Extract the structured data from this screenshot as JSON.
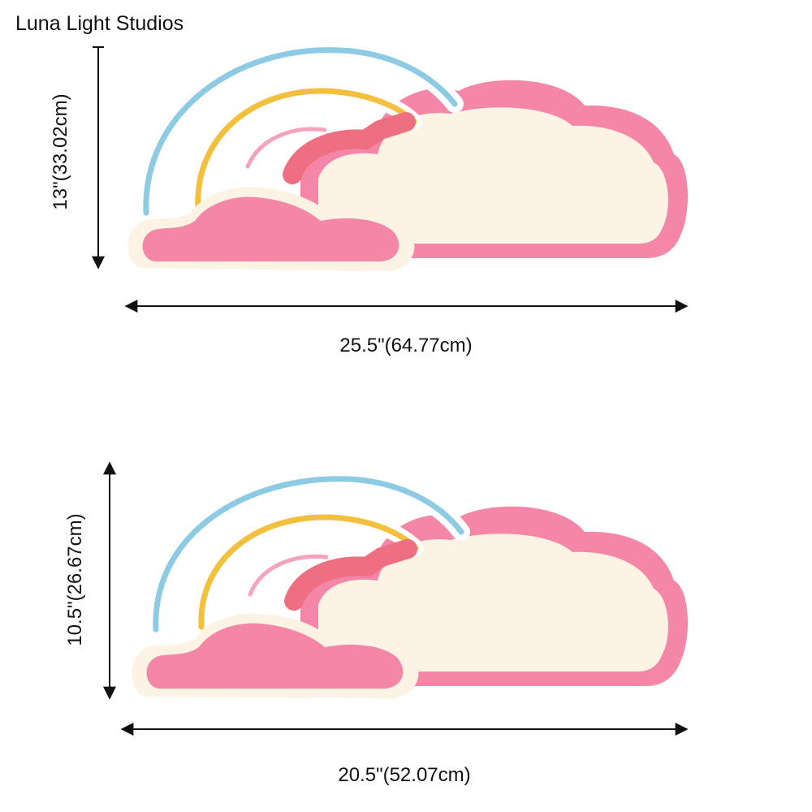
{
  "brand": "Luna Light Studios",
  "products": [
    {
      "height_label": "13\"(33.02cm)",
      "width_label": "25.5\"(64.77cm)"
    },
    {
      "height_label": "10.5\"(26.67cm)",
      "width_label": "20.5\"(52.07cm)"
    }
  ],
  "colors": {
    "pink": "#f487a8",
    "cream": "#fdf3e4",
    "blue": "#8ccbe3",
    "yellow": "#f2c03d",
    "coral": "#ef6f82"
  }
}
